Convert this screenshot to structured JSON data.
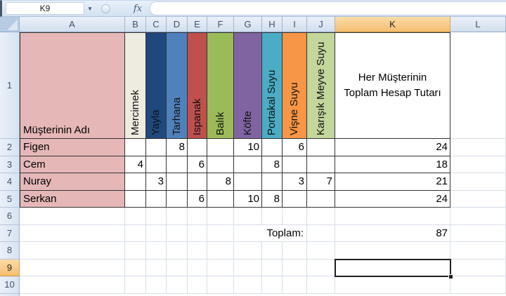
{
  "formula_bar": {
    "name_box_value": "K9",
    "dropdown_icon": "▼",
    "fx_label": "fx",
    "formula_value": ""
  },
  "column_headers": {
    "letters": [
      "A",
      "B",
      "C",
      "D",
      "E",
      "F",
      "G",
      "H",
      "I",
      "J",
      "K",
      "L"
    ],
    "selected": "K"
  },
  "row_headers": [
    "1",
    "2",
    "3",
    "4",
    "5",
    "6",
    "7",
    "8",
    "9",
    "10"
  ],
  "selection": {
    "cell": "K9"
  },
  "table": {
    "customer_header": "Müşterinin Adı",
    "customer_fill_color": "#E5B8B7",
    "products": [
      {
        "name": "Mercimek",
        "color": "#EEECE1"
      },
      {
        "name": "Yayla",
        "color": "#1F497D"
      },
      {
        "name": "Tarhana",
        "color": "#4F81BD"
      },
      {
        "name": "Ispanak",
        "color": "#C0504D"
      },
      {
        "name": "Balık",
        "color": "#9BBB59"
      },
      {
        "name": "Köfte",
        "color": "#8064A2"
      },
      {
        "name": "Portakal Suyu",
        "color": "#4BACC6"
      },
      {
        "name": "Vişne Suyu",
        "color": "#F79646"
      },
      {
        "name": "Karışık Meyve Suyu",
        "color": "#C3D69B"
      }
    ],
    "total_header": "Her Müşterinin Toplam Hesap Tutarı",
    "rows": [
      {
        "name": "Figen",
        "values": [
          "",
          "",
          "8",
          "",
          "",
          "10",
          "",
          "6",
          ""
        ],
        "total": "24"
      },
      {
        "name": "Cem",
        "values": [
          "4",
          "",
          "",
          "6",
          "",
          "",
          "8",
          "",
          ""
        ],
        "total": "18"
      },
      {
        "name": "Nuray",
        "values": [
          "",
          "3",
          "",
          "",
          "8",
          "",
          "",
          "3",
          "7"
        ],
        "total": "21"
      },
      {
        "name": "Serkan",
        "values": [
          "",
          "",
          "",
          "6",
          "",
          "10",
          "8",
          "",
          ""
        ],
        "total": "24"
      }
    ],
    "summary_label": "Toplam:",
    "summary_value": "87"
  },
  "colors": {
    "selected_header_bg": "#F7C377",
    "selection_border": "#1F1F1F",
    "grid_line": "#D6DEE8",
    "table_border": "#333333"
  }
}
